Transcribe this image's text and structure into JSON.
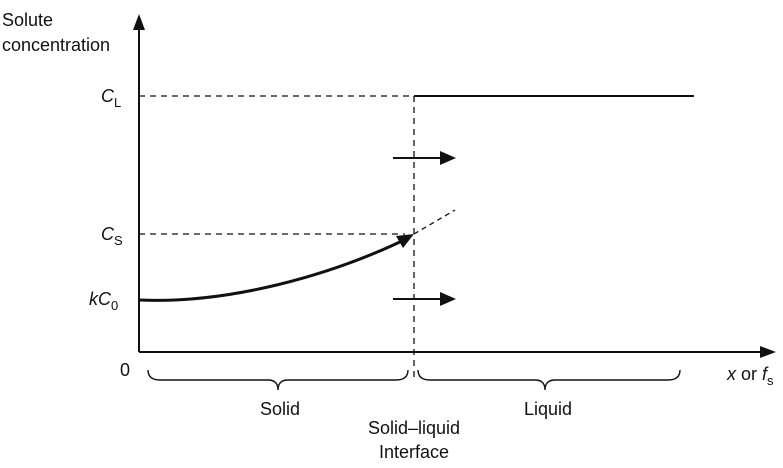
{
  "axes": {
    "y_label_line1": "Solute",
    "y_label_line2": "concentration",
    "origin": "0",
    "x_label": {
      "x": "x",
      "or": " or ",
      "f": "f",
      "sub": "s"
    }
  },
  "levels": {
    "CL": {
      "main": "C",
      "sub": "L"
    },
    "CS": {
      "main": "C",
      "sub": "S"
    },
    "kC0": {
      "main": "kC",
      "sub": "0"
    }
  },
  "regions": {
    "solid": "Solid",
    "liquid": "Liquid",
    "interface_line1": "Solid–liquid",
    "interface_line2": "Interface"
  },
  "colors": {
    "ink": "#111111",
    "background": "#ffffff"
  }
}
